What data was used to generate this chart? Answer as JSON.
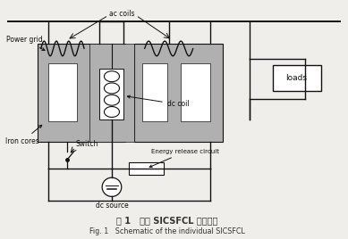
{
  "bg_color": "#f0eeeb",
  "title_cn": "图 1   单相 SICSFCL 的原理图",
  "title_en": "Fig. 1   Schematic of the individual SICSFCL",
  "labels": {
    "power_grid": "Power grid",
    "ac_coils": "ac coils",
    "iron_cores": "Iron cores",
    "switch": "Switch",
    "dc_source": "dc source",
    "dc_coil": "dc coil",
    "energy_release": "Energy release circuit",
    "loads": "loads"
  },
  "iron_core_color": "#b0b0b0",
  "wire_color": "#111111",
  "box_color": "#ffffff"
}
